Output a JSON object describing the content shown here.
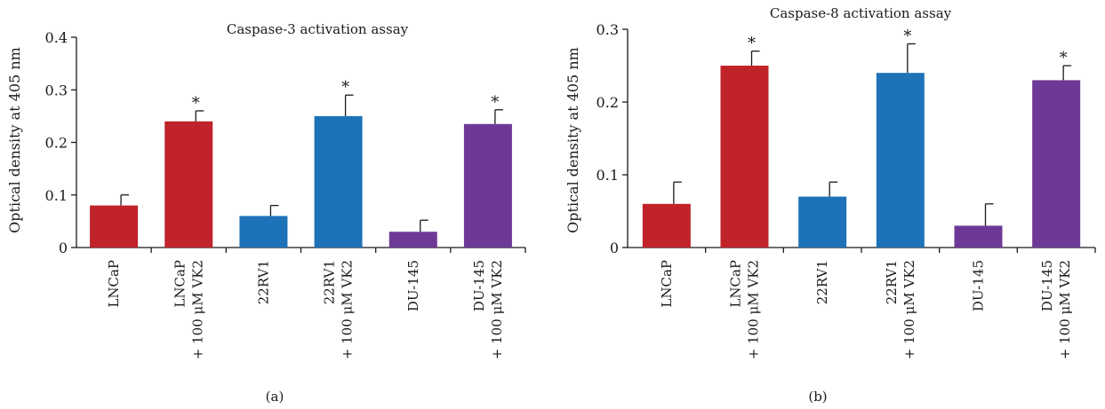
{
  "chart_data": [
    {
      "type": "bar",
      "title": "Caspase-3 activation assay",
      "ylabel": "Optical density at 405 nm",
      "xlabel": "",
      "panel_label": "(a)",
      "ylim": [
        0,
        0.4
      ],
      "yticks": [
        "0",
        "0.1",
        "0.2",
        "0.3",
        "0.4"
      ],
      "categories": [
        [
          "LNCaP"
        ],
        [
          "LNCaP",
          "+ 100 μM VK2"
        ],
        [
          "22RV1"
        ],
        [
          "22RV1",
          "+ 100 μM VK2"
        ],
        [
          "DU-145"
        ],
        [
          "DU-145",
          "+ 100 μM VK2"
        ]
      ],
      "values": [
        0.08,
        0.24,
        0.06,
        0.25,
        0.03,
        0.235
      ],
      "errors": [
        0.02,
        0.02,
        0.02,
        0.04,
        0.022,
        0.027
      ],
      "significance": [
        "",
        "*",
        "",
        "*",
        "",
        "*"
      ],
      "colors": [
        "#c1232b",
        "#c1232b",
        "#1d72b8",
        "#1d72b8",
        "#6e3996",
        "#6e3996"
      ]
    },
    {
      "type": "bar",
      "title": "Caspase-8 activation assay",
      "ylabel": "Optical density at 405 nm",
      "xlabel": "",
      "panel_label": "(b)",
      "ylim": [
        0,
        0.3
      ],
      "yticks": [
        "0",
        "0.1",
        "0.2",
        "0.3"
      ],
      "categories": [
        [
          "LNCaP"
        ],
        [
          "LNCaP",
          "+ 100 μM VK2"
        ],
        [
          "22RV1"
        ],
        [
          "22RV1",
          "+ 100 μM VK2"
        ],
        [
          "DU-145"
        ],
        [
          "DU-145",
          "+ 100 μM VK2"
        ]
      ],
      "values": [
        0.06,
        0.25,
        0.07,
        0.24,
        0.03,
        0.23
      ],
      "errors": [
        0.03,
        0.02,
        0.02,
        0.04,
        0.03,
        0.02
      ],
      "significance": [
        "",
        "*",
        "",
        "*",
        "",
        "*"
      ],
      "colors": [
        "#c1232b",
        "#c1232b",
        "#1d72b8",
        "#1d72b8",
        "#6e3996",
        "#6e3996"
      ]
    }
  ]
}
